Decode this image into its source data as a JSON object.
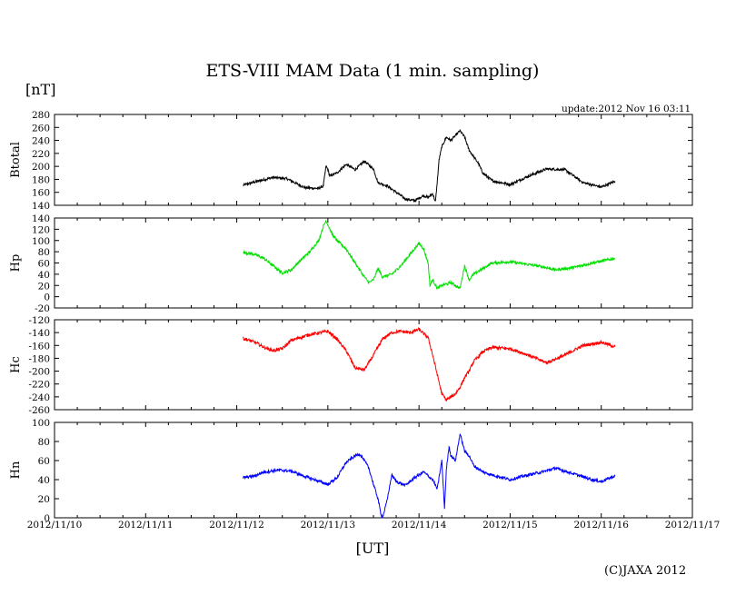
{
  "chart_data": {
    "type": "line",
    "title": "ETS-VIII MAM Data (1 min. sampling)",
    "unit_label": "[nT]",
    "update_label": "update:2012 Nov 16 03:11",
    "xlabel": "[UT]",
    "credit": "(C)JAXA 2012",
    "x_range": [
      0,
      7
    ],
    "x_tick_labels": [
      "2012/11/10",
      "2012/11/11",
      "2012/11/12",
      "2012/11/13",
      "2012/11/14",
      "2012/11/15",
      "2012/11/16",
      "2012/11/17"
    ],
    "panels": [
      {
        "name": "Btotal",
        "ylabel": "Btotal",
        "color": "#000000",
        "ylim": [
          140,
          280
        ],
        "yticks": [
          140,
          160,
          180,
          200,
          220,
          240,
          260,
          280
        ],
        "noise": 2.0,
        "x": [
          2.07,
          2.2,
          2.4,
          2.55,
          2.75,
          2.9,
          2.95,
          2.98,
          3.0,
          3.02,
          3.1,
          3.2,
          3.3,
          3.4,
          3.5,
          3.55,
          3.65,
          3.75,
          3.85,
          3.95,
          4.05,
          4.1,
          4.15,
          4.18,
          4.2,
          4.22,
          4.25,
          4.3,
          4.35,
          4.45,
          4.5,
          4.55,
          4.6,
          4.65,
          4.7,
          4.8,
          4.9,
          5.0,
          5.2,
          5.4,
          5.6,
          5.8,
          6.0,
          6.15
        ],
        "y": [
          171,
          176,
          183,
          181,
          167,
          166,
          170,
          200,
          195,
          185,
          190,
          203,
          195,
          208,
          196,
          175,
          170,
          160,
          150,
          147,
          155,
          152,
          158,
          145,
          175,
          210,
          230,
          245,
          240,
          255,
          245,
          225,
          215,
          205,
          190,
          178,
          175,
          172,
          185,
          196,
          195,
          175,
          168,
          177
        ]
      },
      {
        "name": "Hp",
        "ylabel": "Hp",
        "color": "#00e000",
        "ylim": [
          -20,
          140
        ],
        "yticks": [
          -20,
          0,
          20,
          40,
          60,
          80,
          100,
          120,
          140
        ],
        "noise": 2.5,
        "x": [
          2.07,
          2.2,
          2.3,
          2.4,
          2.5,
          2.6,
          2.7,
          2.8,
          2.9,
          2.95,
          2.98,
          3.0,
          3.05,
          3.1,
          3.2,
          3.3,
          3.4,
          3.45,
          3.5,
          3.55,
          3.6,
          3.7,
          3.8,
          3.9,
          4.0,
          4.05,
          4.1,
          4.12,
          4.15,
          4.2,
          4.25,
          4.35,
          4.45,
          4.5,
          4.55,
          4.6,
          4.8,
          5.0,
          5.3,
          5.5,
          5.7,
          5.9,
          6.15
        ],
        "y": [
          79,
          75,
          68,
          55,
          42,
          48,
          65,
          80,
          100,
          125,
          135,
          128,
          110,
          100,
          85,
          60,
          35,
          25,
          30,
          50,
          35,
          40,
          55,
          75,
          95,
          85,
          60,
          20,
          30,
          15,
          20,
          25,
          15,
          55,
          30,
          40,
          60,
          62,
          55,
          48,
          52,
          60,
          68
        ]
      },
      {
        "name": "Hc",
        "ylabel": "Hc",
        "color": "#ff0000",
        "ylim": [
          -260,
          -120
        ],
        "yticks": [
          -260,
          -240,
          -220,
          -200,
          -180,
          -160,
          -140,
          -120
        ],
        "noise": 2.5,
        "x": [
          2.07,
          2.2,
          2.3,
          2.4,
          2.5,
          2.6,
          2.8,
          3.0,
          3.1,
          3.2,
          3.3,
          3.4,
          3.5,
          3.6,
          3.65,
          3.7,
          3.8,
          3.9,
          4.0,
          4.1,
          4.15,
          4.2,
          4.25,
          4.3,
          4.35,
          4.4,
          4.45,
          4.5,
          4.55,
          4.6,
          4.7,
          4.8,
          5.0,
          5.2,
          5.4,
          5.6,
          5.8,
          6.0,
          6.15
        ],
        "y": [
          -149,
          -155,
          -163,
          -168,
          -165,
          -152,
          -143,
          -138,
          -150,
          -168,
          -195,
          -198,
          -175,
          -150,
          -145,
          -140,
          -138,
          -140,
          -135,
          -148,
          -175,
          -205,
          -235,
          -245,
          -240,
          -235,
          -225,
          -210,
          -200,
          -185,
          -170,
          -163,
          -165,
          -175,
          -187,
          -175,
          -160,
          -155,
          -162
        ]
      },
      {
        "name": "Hn",
        "ylabel": "Hn",
        "color": "#0000ff",
        "ylim": [
          0,
          100
        ],
        "yticks": [
          0,
          20,
          40,
          60,
          80,
          100
        ],
        "noise": 1.5,
        "x": [
          2.07,
          2.2,
          2.3,
          2.45,
          2.6,
          2.7,
          2.85,
          3.0,
          3.1,
          3.2,
          3.3,
          3.35,
          3.4,
          3.45,
          3.5,
          3.55,
          3.58,
          3.6,
          3.65,
          3.7,
          3.75,
          3.85,
          3.95,
          4.05,
          4.15,
          4.2,
          4.25,
          4.28,
          4.3,
          4.33,
          4.35,
          4.4,
          4.45,
          4.5,
          4.55,
          4.6,
          4.7,
          4.8,
          5.0,
          5.2,
          5.35,
          5.5,
          5.7,
          5.9,
          6.0,
          6.15
        ],
        "y": [
          42,
          44,
          48,
          50,
          49,
          45,
          40,
          35,
          42,
          58,
          65,
          67,
          60,
          52,
          35,
          20,
          5,
          0,
          18,
          45,
          38,
          34,
          42,
          48,
          40,
          30,
          60,
          10,
          50,
          75,
          65,
          60,
          88,
          70,
          65,
          55,
          48,
          45,
          40,
          45,
          48,
          52,
          46,
          40,
          38,
          44
        ]
      }
    ]
  }
}
